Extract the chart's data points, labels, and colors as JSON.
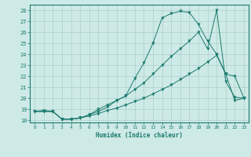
{
  "xlabel": "Humidex (Indice chaleur)",
  "background_color": "#ceeae6",
  "grid_color": "#aacfcb",
  "line_color": "#1a7a6e",
  "x_values": [
    0,
    1,
    2,
    3,
    4,
    5,
    6,
    7,
    8,
    9,
    10,
    11,
    12,
    13,
    14,
    15,
    16,
    17,
    18,
    19,
    20,
    21,
    22,
    23
  ],
  "series1": [
    18.8,
    18.9,
    18.8,
    18.1,
    18.1,
    18.2,
    18.5,
    18.8,
    19.2,
    19.8,
    20.2,
    21.8,
    23.2,
    25.0,
    27.3,
    27.7,
    27.9,
    27.8,
    26.7,
    25.2,
    24.0,
    22.2,
    22.0,
    20.0
  ],
  "series2": [
    18.8,
    18.8,
    18.8,
    18.1,
    18.1,
    18.2,
    18.5,
    19.0,
    19.4,
    19.8,
    20.2,
    20.8,
    21.4,
    22.2,
    23.0,
    23.8,
    24.5,
    25.2,
    26.0,
    24.5,
    28.0,
    21.5,
    20.1,
    20.0
  ],
  "series3": [
    18.8,
    18.8,
    18.8,
    18.1,
    18.1,
    18.2,
    18.4,
    18.6,
    18.9,
    19.1,
    19.4,
    19.7,
    20.0,
    20.4,
    20.8,
    21.2,
    21.7,
    22.2,
    22.7,
    23.3,
    23.9,
    22.2,
    19.8,
    20.0
  ],
  "ylim": [
    17.8,
    28.5
  ],
  "xlim": [
    -0.5,
    23.5
  ],
  "yticks": [
    18,
    19,
    20,
    21,
    22,
    23,
    24,
    25,
    26,
    27,
    28
  ],
  "xticks": [
    0,
    1,
    2,
    3,
    4,
    5,
    6,
    7,
    8,
    9,
    10,
    11,
    12,
    13,
    14,
    15,
    16,
    17,
    18,
    19,
    20,
    21,
    22,
    23
  ]
}
